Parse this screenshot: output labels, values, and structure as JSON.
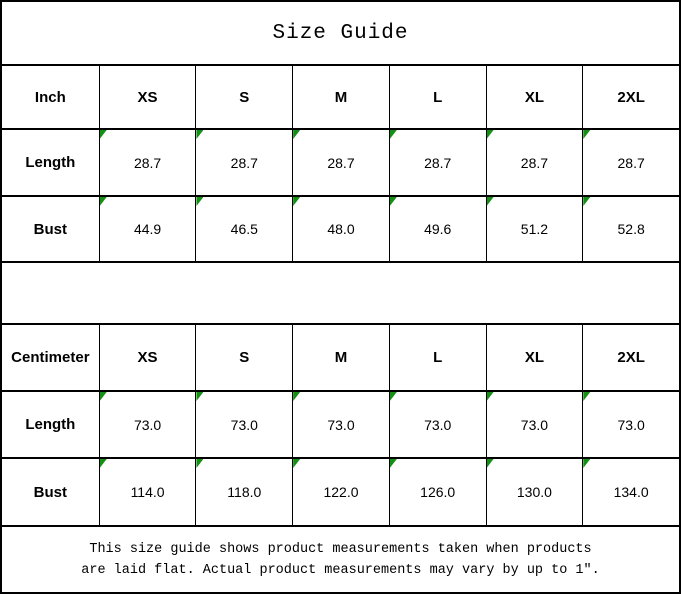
{
  "title": "Size Guide",
  "colors": {
    "background": "#FFFFFF",
    "border": "#000000",
    "cell_flag_green": "#149014"
  },
  "footer_note": {
    "line1": "This size guide shows product measurements taken when products",
    "line2": "are laid flat. Actual product measurements may vary by up to 1″."
  },
  "chart_data": [
    {
      "type": "table",
      "title": "Size Guide",
      "unit": "Inch",
      "sizes": [
        "XS",
        "S",
        "M",
        "L",
        "XL",
        "2XL"
      ],
      "rows": [
        {
          "label": "Length",
          "values": [
            "28.7",
            "28.7",
            "28.7",
            "28.7",
            "28.7",
            "28.7"
          ]
        },
        {
          "label": "Bust",
          "values": [
            "44.9",
            "46.5",
            "48.0",
            "49.6",
            "51.2",
            "52.8"
          ]
        }
      ]
    },
    {
      "type": "table",
      "unit": "Centimeter",
      "sizes": [
        "XS",
        "S",
        "M",
        "L",
        "XL",
        "2XL"
      ],
      "rows": [
        {
          "label": "Length",
          "values": [
            "73.0",
            "73.0",
            "73.0",
            "73.0",
            "73.0",
            "73.0"
          ]
        },
        {
          "label": "Bust",
          "values": [
            "114.0",
            "118.0",
            "122.0",
            "126.0",
            "130.0",
            "134.0"
          ]
        }
      ]
    }
  ]
}
